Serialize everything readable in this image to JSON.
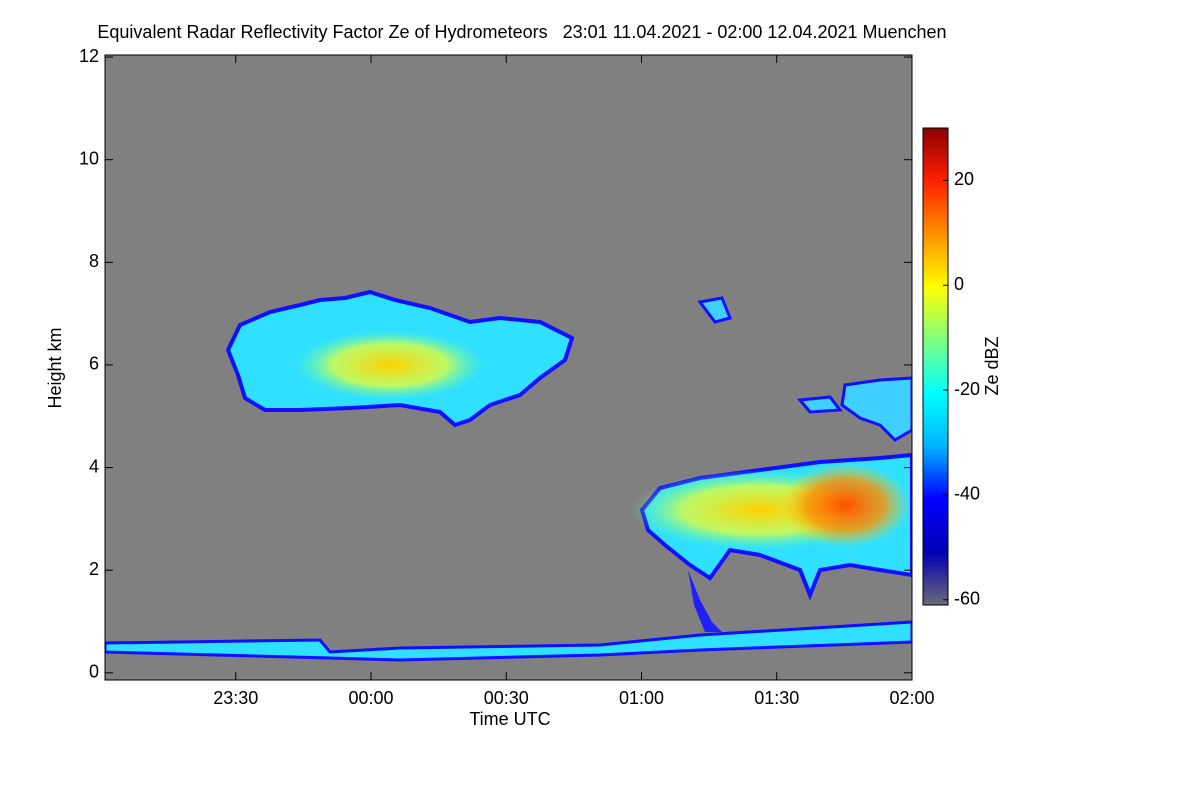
{
  "chart_data": {
    "type": "heatmap",
    "title": "Equivalent Radar Reflectivity Factor Ze of Hydrometeors   23:01 11.04.2021 - 02:00 12.04.2021 Muenchen",
    "x_label": "Time UTC",
    "y_label": "Height km",
    "xlim": [
      "23:01",
      "02:00"
    ],
    "xticks": [
      "23:30",
      "00:00",
      "00:30",
      "01:00",
      "01:30",
      "02:00"
    ],
    "ylim": [
      -0.14,
      12.04
    ],
    "yticks": [
      0,
      2,
      4,
      6,
      8,
      10,
      12
    ],
    "background": "#808080",
    "colorbar": {
      "label": "Ze dBZ",
      "lim": [
        -61,
        30
      ],
      "ticks": [
        -60,
        -40,
        -20,
        0,
        20
      ],
      "colormap": [
        "#6a6a78",
        "#0000b4",
        "#0000ff",
        "#00b4ff",
        "#00ffff",
        "#80ff80",
        "#ffff00",
        "#ff9000",
        "#ff2000",
        "#8b0000"
      ]
    }
  }
}
